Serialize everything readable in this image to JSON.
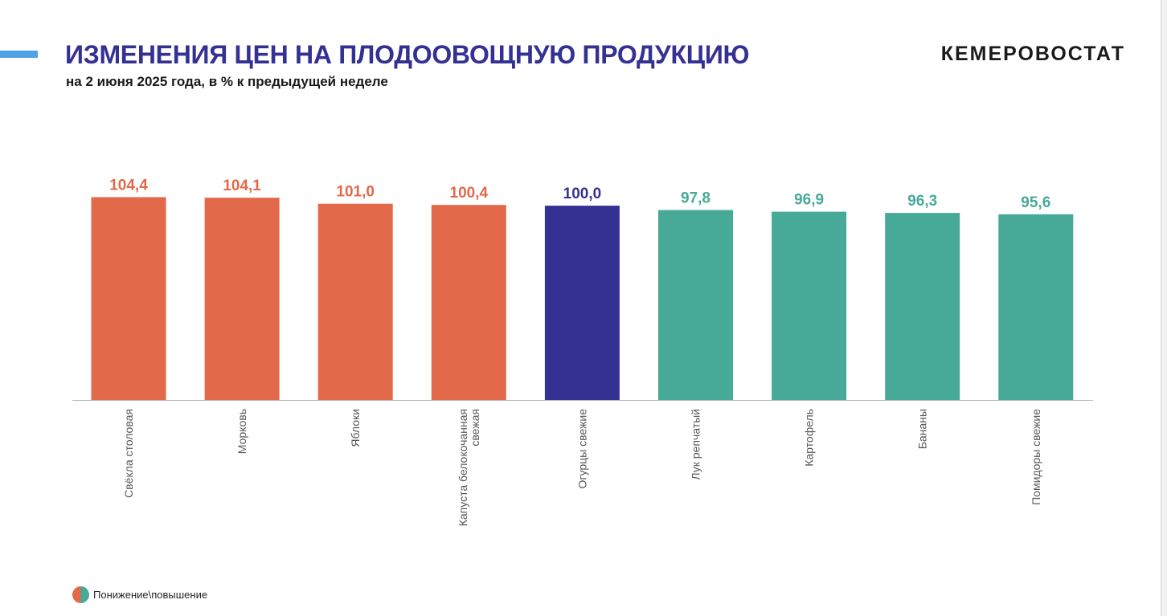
{
  "header": {
    "title": "ИЗМЕНЕНИЯ ЦЕН НА ПЛОДООВОЩНУЮ ПРОДУКЦИЮ",
    "subtitle": "на 2 июня 2025 года, в % к предыдущей неделе",
    "logo_text": "КЕМЕРОВОСТАТ"
  },
  "legend": {
    "label": "Понижение\\повышение"
  },
  "colors": {
    "increase": "#e2694a",
    "unchanged": "#353193",
    "decrease": "#47aa98",
    "accent": "#4da3e8",
    "title": "#343193"
  },
  "chart_data": {
    "type": "bar",
    "title": "ИЗМЕНЕНИЯ ЦЕН НА ПЛОДООВОЩНУЮ ПРОДУКЦИЮ",
    "subtitle": "на 2 июня 2025 года, в % к предыдущей неделе",
    "xlabel": "",
    "ylabel": "",
    "categories": [
      [
        "Свёкла столовая"
      ],
      [
        "Морковь"
      ],
      [
        "Яблоки"
      ],
      [
        "Капуста белокочанная",
        "свежая"
      ],
      [
        "Огурцы свежие"
      ],
      [
        "Лук репчатый"
      ],
      [
        "Картофель"
      ],
      [
        "Бананы"
      ],
      [
        "Помидоры свежие"
      ]
    ],
    "values": [
      104.4,
      104.1,
      101.0,
      100.4,
      100.0,
      97.8,
      96.9,
      96.3,
      95.6
    ],
    "value_labels": [
      "104,4",
      "104,1",
      "101,0",
      "100,4",
      "100,0",
      "97,8",
      "96,9",
      "96,3",
      "95,6"
    ],
    "status": [
      "increase",
      "increase",
      "increase",
      "increase",
      "unchanged",
      "decrease",
      "decrease",
      "decrease",
      "decrease"
    ],
    "y_axis_visible": false,
    "grid": false,
    "legend_position": "bottom-left"
  }
}
